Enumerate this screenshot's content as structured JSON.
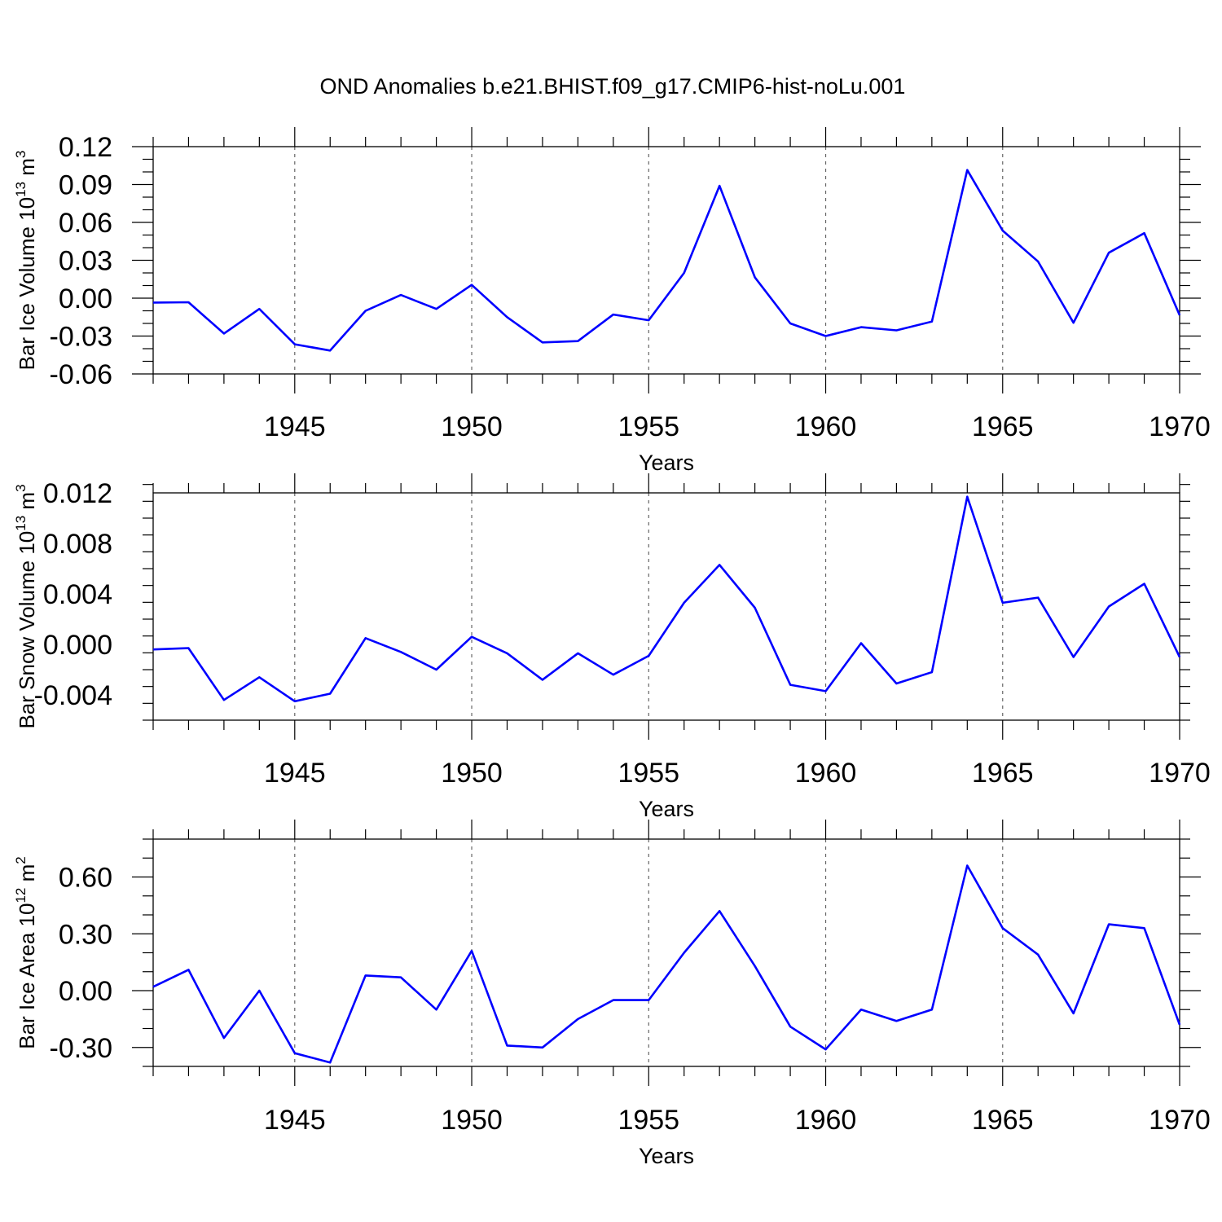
{
  "title": "OND Anomalies b.e21.BHIST.f09_g17.CMIP6-hist-noLu.001",
  "colors": {
    "series": "#0000ff",
    "axis": "#000000",
    "grid": "#666666"
  },
  "chart_data": [
    {
      "type": "line",
      "ylabel": {
        "main": "Bar Ice Volume 10",
        "exp": "13",
        "unit": " m",
        "unit_exp": "3"
      },
      "xlabel": "Years",
      "xlim": [
        1941,
        1970
      ],
      "ylim": [
        -0.06,
        0.12
      ],
      "yticks": [
        -0.06,
        -0.03,
        0.0,
        0.03,
        0.06,
        0.09,
        0.12
      ],
      "ytick_labels": [
        "-0.06",
        "-0.03",
        "0.00",
        "0.03",
        "0.06",
        "0.09",
        "0.12"
      ],
      "xticks": [
        1945,
        1950,
        1955,
        1960,
        1965,
        1970
      ],
      "xtick_labels": [
        "1945",
        "1950",
        "1955",
        "1960",
        "1965",
        "1970"
      ],
      "grid": "vertical dashed at major x ticks",
      "x": [
        1941,
        1942,
        1943,
        1944,
        1945,
        1946,
        1947,
        1948,
        1949,
        1950,
        1951,
        1952,
        1953,
        1954,
        1955,
        1956,
        1957,
        1958,
        1959,
        1960,
        1961,
        1962,
        1963,
        1964,
        1965,
        1966,
        1967,
        1968,
        1969,
        1970
      ],
      "values": [
        -0.0035,
        -0.0032,
        -0.028,
        -0.0085,
        -0.0365,
        -0.0415,
        -0.01,
        0.0025,
        -0.0085,
        0.0105,
        -0.015,
        -0.035,
        -0.034,
        -0.013,
        -0.0175,
        0.02,
        0.089,
        0.0165,
        -0.02,
        -0.03,
        -0.023,
        -0.0255,
        -0.0185,
        0.1015,
        0.0535,
        0.029,
        -0.0195,
        0.036,
        0.0515,
        -0.0135
      ]
    },
    {
      "type": "line",
      "ylabel": {
        "main": "Bar Snow Volume 10",
        "exp": "13",
        "unit": " m",
        "unit_exp": "3"
      },
      "xlabel": "Years",
      "xlim": [
        1941,
        1970
      ],
      "ylim": [
        -0.006,
        0.012
      ],
      "yticks": [
        -0.004,
        0.0,
        0.004,
        0.008,
        0.012
      ],
      "ytick_labels": [
        "-0.004",
        "0.000",
        "0.004",
        "0.008",
        "0.012"
      ],
      "xticks": [
        1945,
        1950,
        1955,
        1960,
        1965,
        1970
      ],
      "xtick_labels": [
        "1945",
        "1950",
        "1955",
        "1960",
        "1965",
        "1970"
      ],
      "grid": "vertical dashed at major x ticks",
      "x": [
        1941,
        1942,
        1943,
        1944,
        1945,
        1946,
        1947,
        1948,
        1949,
        1950,
        1951,
        1952,
        1953,
        1954,
        1955,
        1956,
        1957,
        1958,
        1959,
        1960,
        1961,
        1962,
        1963,
        1964,
        1965,
        1966,
        1967,
        1968,
        1969,
        1970
      ],
      "values": [
        -0.0004,
        -0.0003,
        -0.0044,
        -0.0026,
        -0.0045,
        -0.0039,
        0.0005,
        -0.0006,
        -0.002,
        0.0006,
        -0.0007,
        -0.0028,
        -0.0007,
        -0.0024,
        -0.0009,
        0.0033,
        0.0063,
        0.0029,
        -0.0032,
        -0.0037,
        0.0001,
        -0.0031,
        -0.0022,
        0.0117,
        0.0033,
        0.0037,
        -0.001,
        0.003,
        0.0048,
        -0.001
      ]
    },
    {
      "type": "line",
      "ylabel": {
        "main": "Bar Ice Area 10",
        "exp": "12",
        "unit": " m",
        "unit_exp": "2"
      },
      "xlabel": "Years",
      "xlim": [
        1941,
        1970
      ],
      "ylim": [
        -0.4,
        0.8
      ],
      "yticks": [
        -0.3,
        0.0,
        0.3,
        0.6
      ],
      "ytick_labels": [
        "-0.30",
        "0.00",
        "0.30",
        "0.60"
      ],
      "xticks": [
        1945,
        1950,
        1955,
        1960,
        1965,
        1970
      ],
      "xtick_labels": [
        "1945",
        "1950",
        "1955",
        "1960",
        "1965",
        "1970"
      ],
      "grid": "vertical dashed at major x ticks",
      "x": [
        1941,
        1942,
        1943,
        1944,
        1945,
        1946,
        1947,
        1948,
        1949,
        1950,
        1951,
        1952,
        1953,
        1954,
        1955,
        1956,
        1957,
        1958,
        1959,
        1960,
        1961,
        1962,
        1963,
        1964,
        1965,
        1966,
        1967,
        1968,
        1969,
        1970
      ],
      "values": [
        0.02,
        0.11,
        -0.25,
        0.0,
        -0.33,
        -0.38,
        0.08,
        0.07,
        -0.1,
        0.21,
        -0.29,
        -0.3,
        -0.15,
        -0.05,
        -0.05,
        0.2,
        0.42,
        0.13,
        -0.19,
        -0.31,
        -0.1,
        -0.16,
        -0.1,
        0.66,
        0.33,
        0.19,
        -0.12,
        0.35,
        0.33,
        -0.18
      ]
    }
  ]
}
